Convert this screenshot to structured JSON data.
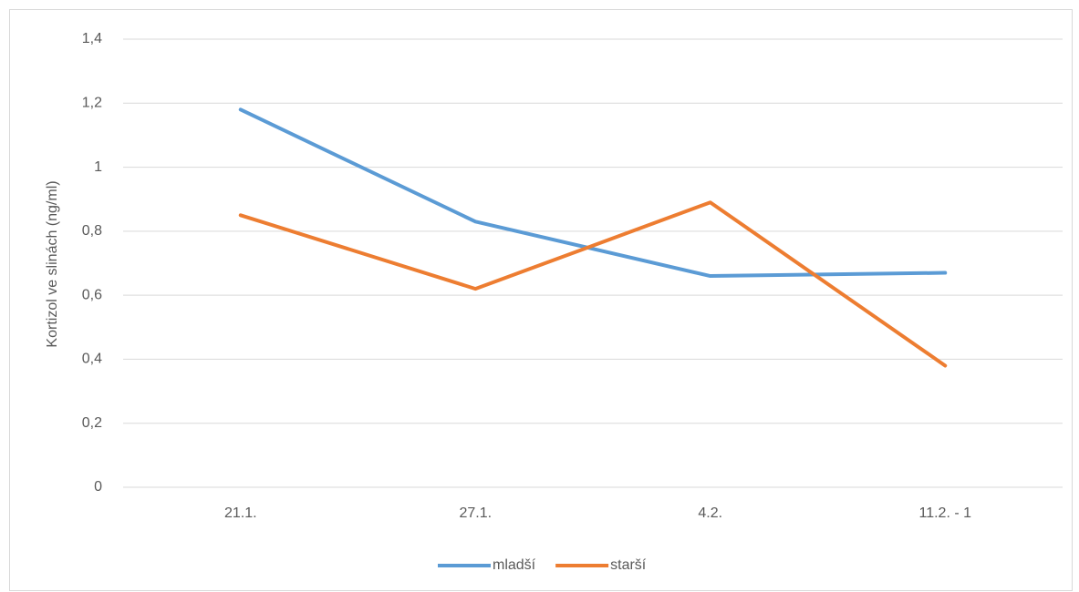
{
  "chart_data": {
    "type": "line",
    "y_label": "Kortizol ve slinách (ng/ml)",
    "categories": [
      "21.1.",
      "27.1.",
      "4.2.",
      "11.2. - 1"
    ],
    "series": [
      {
        "name": "mladší",
        "color": "#5b9bd5",
        "values": [
          1.18,
          0.83,
          0.66,
          0.67
        ]
      },
      {
        "name": "starší",
        "color": "#ed7d31",
        "values": [
          0.85,
          0.62,
          0.89,
          0.38
        ]
      }
    ],
    "ylim": [
      0,
      1.4
    ],
    "yticks": [
      0,
      {
        "value": 0.2,
        "label": "0,2"
      },
      {
        "value": 0.4,
        "label": "0,4"
      },
      {
        "value": 0.6,
        "label": "0,6"
      },
      {
        "value": 0.8,
        "label": "0,8"
      },
      1,
      {
        "value": 1.2,
        "label": "1,2"
      },
      {
        "value": 1.4,
        "label": "1,4"
      }
    ],
    "grid": true,
    "legend": "bottom"
  }
}
